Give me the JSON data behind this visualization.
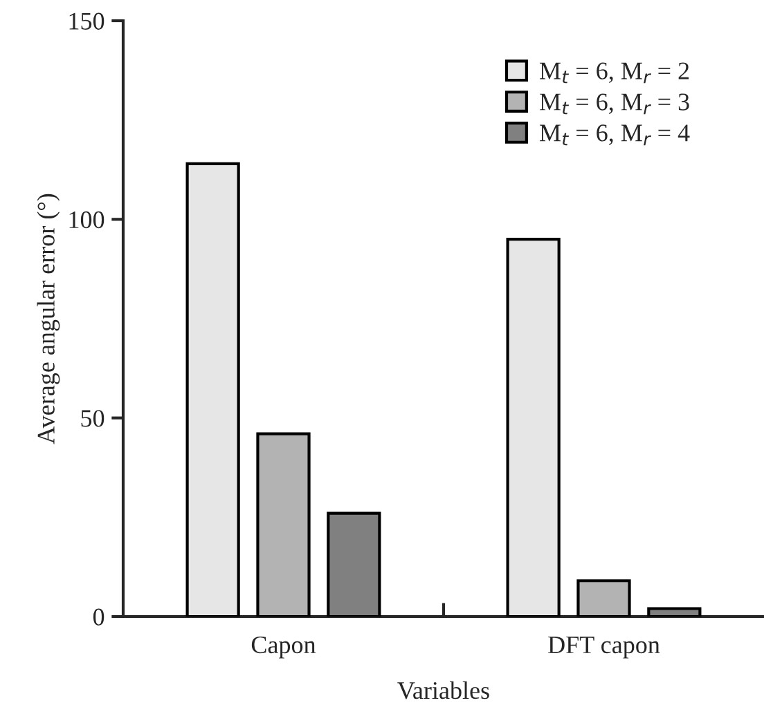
{
  "chart_data": {
    "type": "bar",
    "xlabel": "Variables",
    "ylabel": "Average angular error (°)",
    "categories": [
      "Capon",
      "DFT capon"
    ],
    "series": [
      {
        "name": "M$_{t}$ = 6, M$_{r}$ = 2",
        "color": "#e6e6e6",
        "values": [
          114,
          95
        ]
      },
      {
        "name": "M$_{t}$ = 6, M$_{r}$ = 3",
        "color": "#b3b3b3",
        "values": [
          46,
          9
        ]
      },
      {
        "name": "M$_{t}$ = 6, M$_{r}$ = 4",
        "color": "#808080",
        "values": [
          26,
          2
        ]
      }
    ],
    "ylim": [
      0,
      150
    ],
    "yticks": [
      0,
      50,
      100,
      150
    ],
    "legend": "top right",
    "grid": false
  }
}
